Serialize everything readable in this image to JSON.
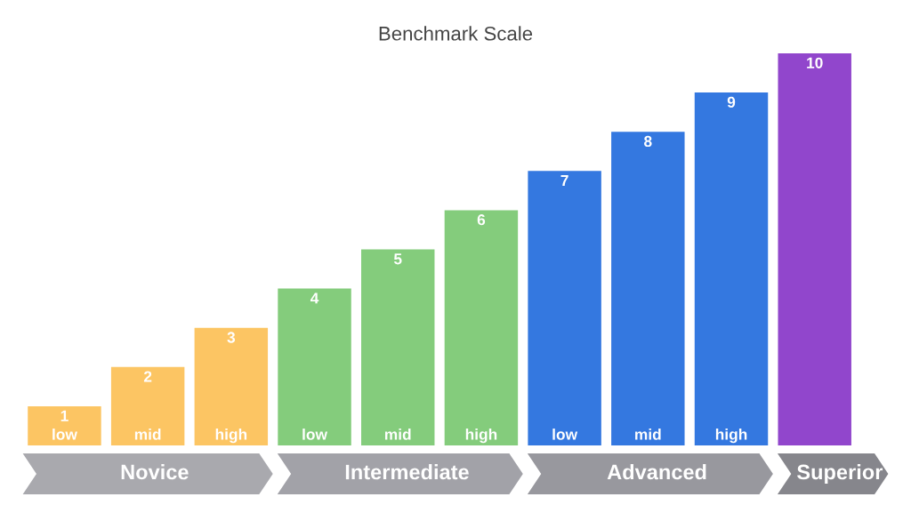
{
  "chart_data": {
    "type": "bar",
    "title": "Benchmark Scale",
    "data_labels": true,
    "ylim": [
      0,
      10
    ],
    "categories": [
      "low",
      "mid",
      "high",
      "low",
      "mid",
      "high",
      "low",
      "mid",
      "high",
      null
    ],
    "values": [
      1,
      2,
      3,
      4,
      5,
      6,
      7,
      8,
      9,
      10
    ],
    "colors": [
      "#fcc563",
      "#fcc563",
      "#fcc563",
      "#84cc7c",
      "#84cc7c",
      "#84cc7c",
      "#3478e0",
      "#3478e0",
      "#3478e0",
      "#9146cc"
    ],
    "annotations": [
      "Novice",
      "Intermediate",
      "Advanced",
      "Superior"
    ],
    "legend": false
  }
}
